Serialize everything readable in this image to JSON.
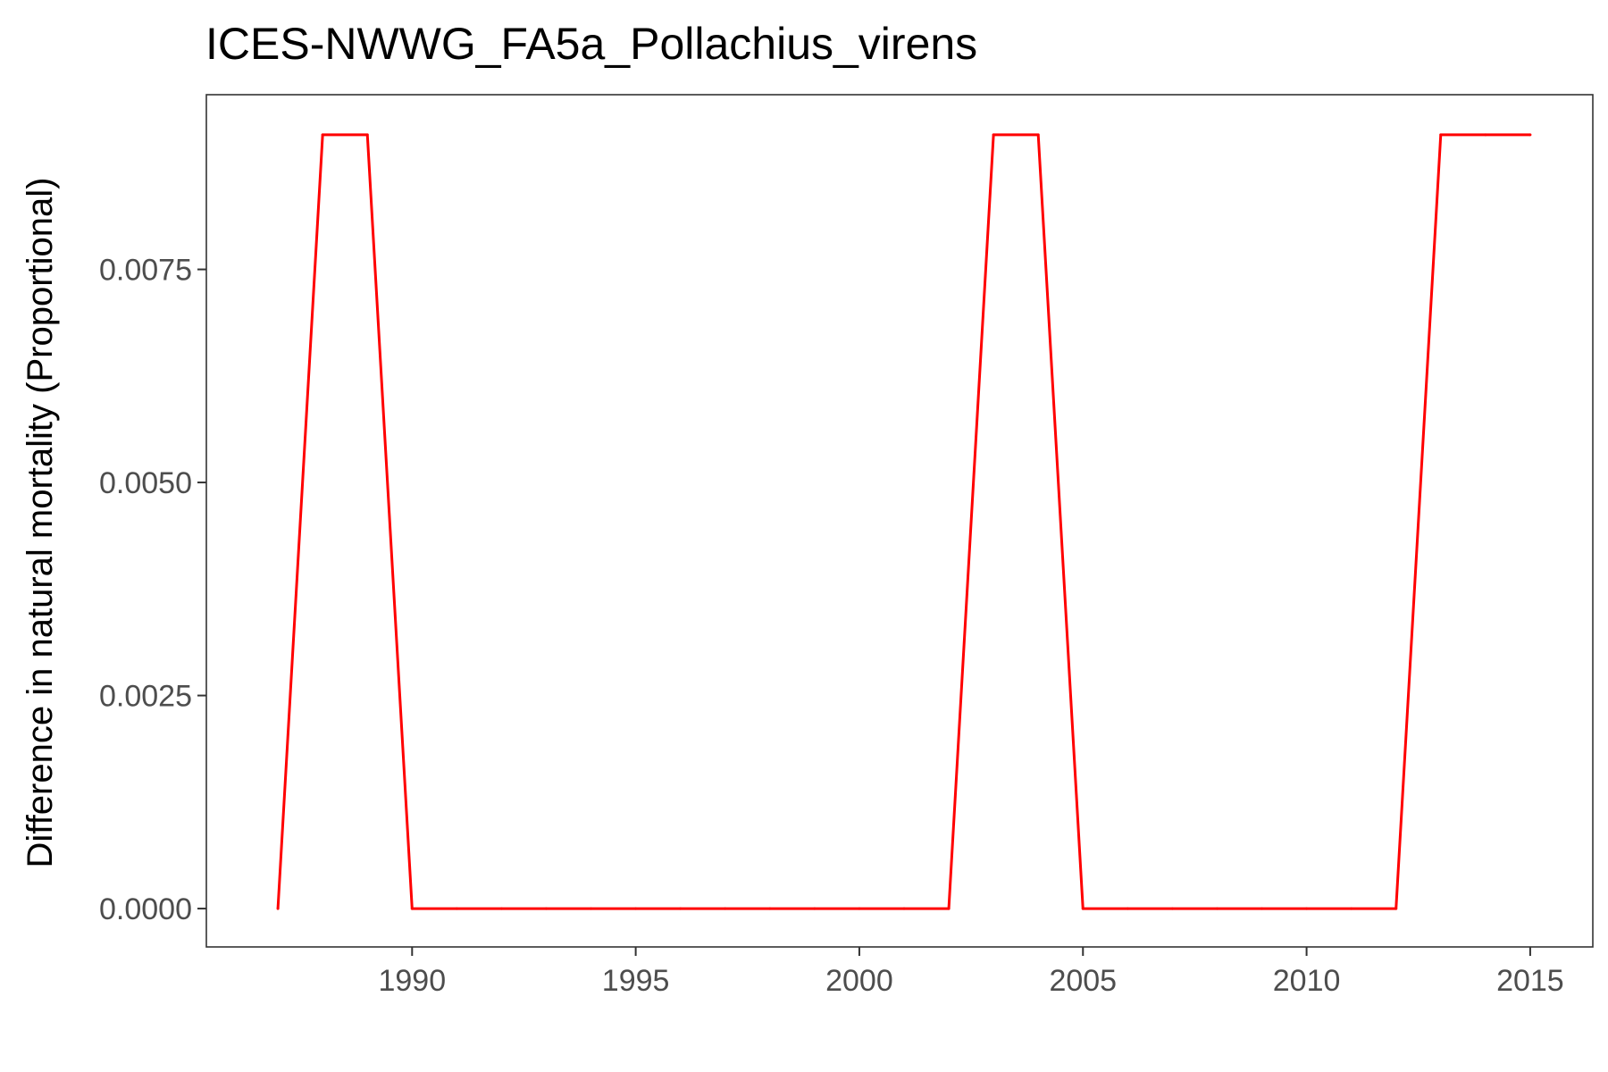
{
  "chart_data": {
    "type": "line",
    "title": "ICES-NWWG_FA5a_Pollachius_virens",
    "xlabel": "",
    "ylabel": "Difference in natural mortality (Proportional)",
    "xlim": [
      1985.4,
      2016.4
    ],
    "ylim": [
      -0.00045,
      0.00955
    ],
    "x_ticks": [
      1990,
      1995,
      2000,
      2005,
      2010,
      2015
    ],
    "x_tick_labels": [
      "1990",
      "1995",
      "2000",
      "2005",
      "2010",
      "2015"
    ],
    "y_ticks": [
      0,
      0.0025,
      0.005,
      0.0075
    ],
    "y_tick_labels": [
      "0.0000",
      "0.0025",
      "0.0050",
      "0.0075"
    ],
    "grid": false,
    "legend": "none",
    "series": [
      {
        "color": "#ff0000",
        "x": [
          1987,
          1988,
          1989,
          1990,
          1991,
          1992,
          1993,
          1994,
          1995,
          1996,
          1997,
          1998,
          1999,
          2000,
          2001,
          2002,
          2003,
          2004,
          2005,
          2006,
          2007,
          2008,
          2009,
          2010,
          2011,
          2012,
          2013,
          2014,
          2015
        ],
        "values": [
          0,
          0.00908,
          0.00908,
          0,
          0,
          0,
          0,
          0,
          0,
          0,
          0,
          0,
          0,
          0,
          0,
          0,
          0.00908,
          0.00908,
          0,
          0,
          0,
          0,
          0,
          0,
          0,
          0,
          0.00908,
          0.00908,
          0.00908
        ]
      }
    ]
  }
}
